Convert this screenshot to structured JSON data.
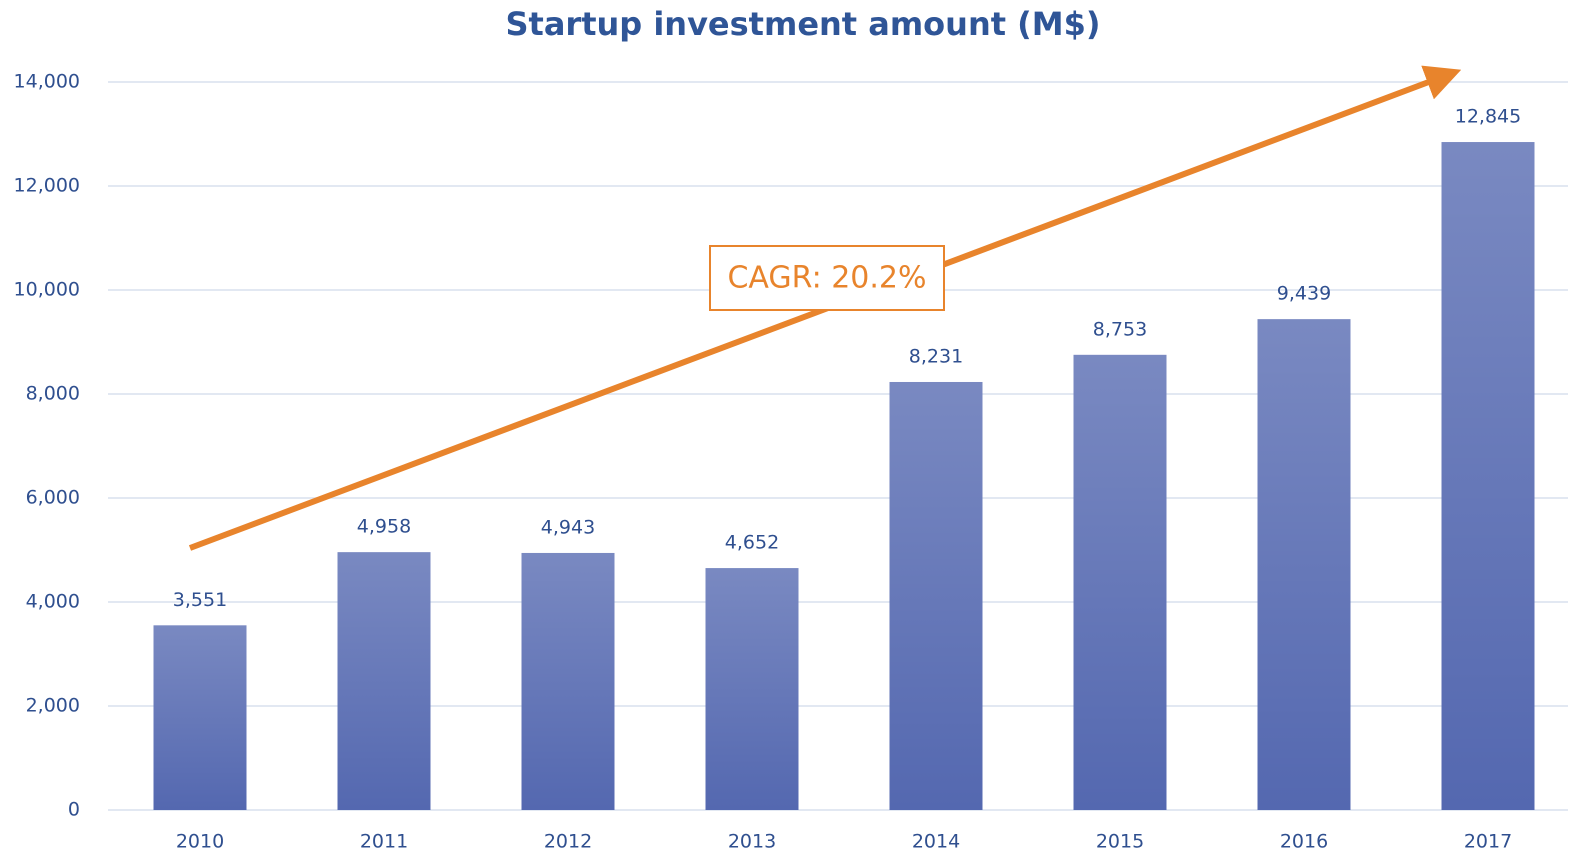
{
  "chart_data": {
    "type": "bar",
    "title": "Startup investment amount (M$)",
    "categories": [
      "2010",
      "2011",
      "2012",
      "2013",
      "2014",
      "2015",
      "2016",
      "2017"
    ],
    "values": [
      3551,
      4958,
      4943,
      4652,
      8231,
      8753,
      9439,
      12845
    ],
    "value_labels": [
      "3,551",
      "4,958",
      "4,943",
      "4,652",
      "8,231",
      "8,753",
      "9,439",
      "12,845"
    ],
    "color": "#5468b0",
    "ylim": [
      0,
      14000
    ],
    "yticks": [
      0,
      {
        "value": 2000,
        "label": "2,000"
      },
      {
        "value": 4000,
        "label": "4,000"
      },
      {
        "value": 6000,
        "label": "6,000"
      },
      {
        "value": 8000,
        "label": "8,000"
      },
      {
        "value": 10000,
        "label": "10,000"
      },
      {
        "value": 12000,
        "label": "12,000"
      },
      {
        "value": 14000,
        "label": "14,000"
      }
    ],
    "grid": true,
    "annotations": [
      "CAGR: 20.2%"
    ]
  }
}
